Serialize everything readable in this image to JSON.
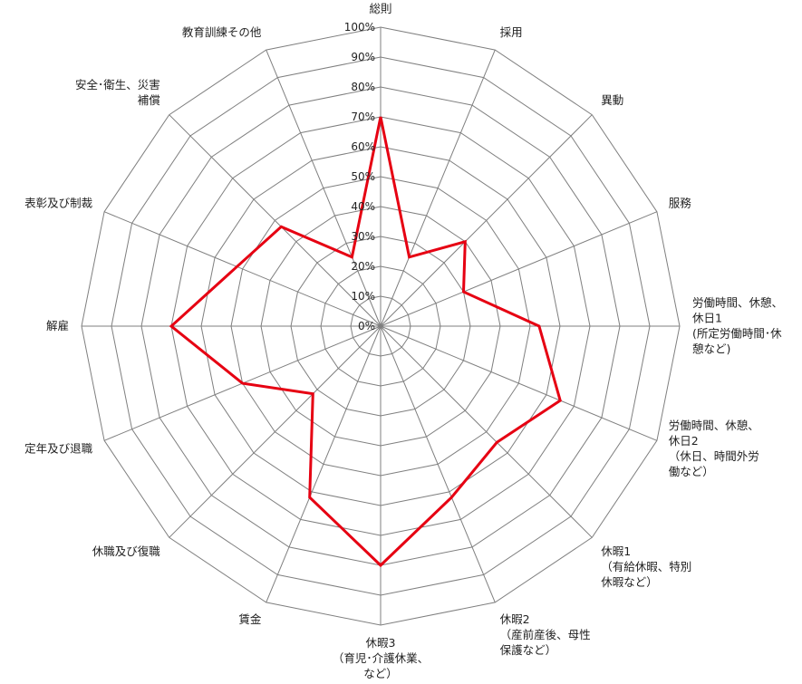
{
  "chart_data": {
    "type": "radar",
    "categories": [
      "総則",
      "採用",
      "異動",
      "服務",
      "労働時間、休憩、\n休日1\n(所定労働時間･休\n憩など)",
      "労働時間、休憩、\n休日2\n（休日、時間外労\n働など）",
      "休暇1\n（有給休暇、特別\n休暇など）",
      "休暇2\n（産前産後、母性\n保護など）",
      "休暇3\n（育児･介護休業、\nなど）",
      "賃金",
      "休職及び復職",
      "定年及び退職",
      "解雇",
      "表彰及び制裁",
      "安全･衛生、災害\n補償",
      "教育訓練その他"
    ],
    "values": [
      70,
      25,
      40,
      30,
      53,
      65,
      55,
      62,
      80,
      62,
      32,
      50,
      70,
      52,
      47,
      25
    ],
    "rmin": 0,
    "rmax": 100,
    "ticks": [
      "0%",
      "10%",
      "20%",
      "30%",
      "40%",
      "50%",
      "60%",
      "70%",
      "80%",
      "90%",
      "100%"
    ],
    "grid": true,
    "legend": "none",
    "series_color": "#e60012",
    "grid_color": "#7f7f7f"
  }
}
